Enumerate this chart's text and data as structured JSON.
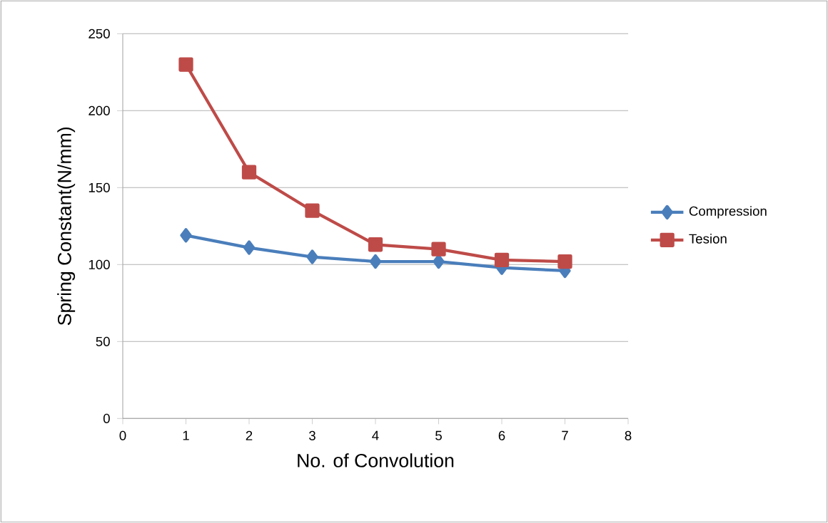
{
  "chart_data": {
    "type": "line",
    "xlabel": "No. of Convolution",
    "ylabel": "Spring Constant(N/mm)",
    "x": [
      1,
      2,
      3,
      4,
      5,
      6,
      7
    ],
    "series": [
      {
        "name": "Compression",
        "color": "#4a7ebb",
        "marker": "diamond",
        "values": [
          119,
          111,
          105,
          102,
          102,
          98,
          96
        ]
      },
      {
        "name": "Tesion",
        "color": "#be4b48",
        "marker": "square",
        "values": [
          230,
          160,
          135,
          113,
          110,
          103,
          102
        ]
      }
    ],
    "xlim": [
      0,
      8
    ],
    "xticks": [
      0,
      1,
      2,
      3,
      4,
      5,
      6,
      7,
      8
    ],
    "ylim": [
      0,
      250
    ],
    "yticks": [
      0,
      50,
      100,
      150,
      200,
      250
    ],
    "grid": "y",
    "legend": "right",
    "line_style": "solid"
  }
}
